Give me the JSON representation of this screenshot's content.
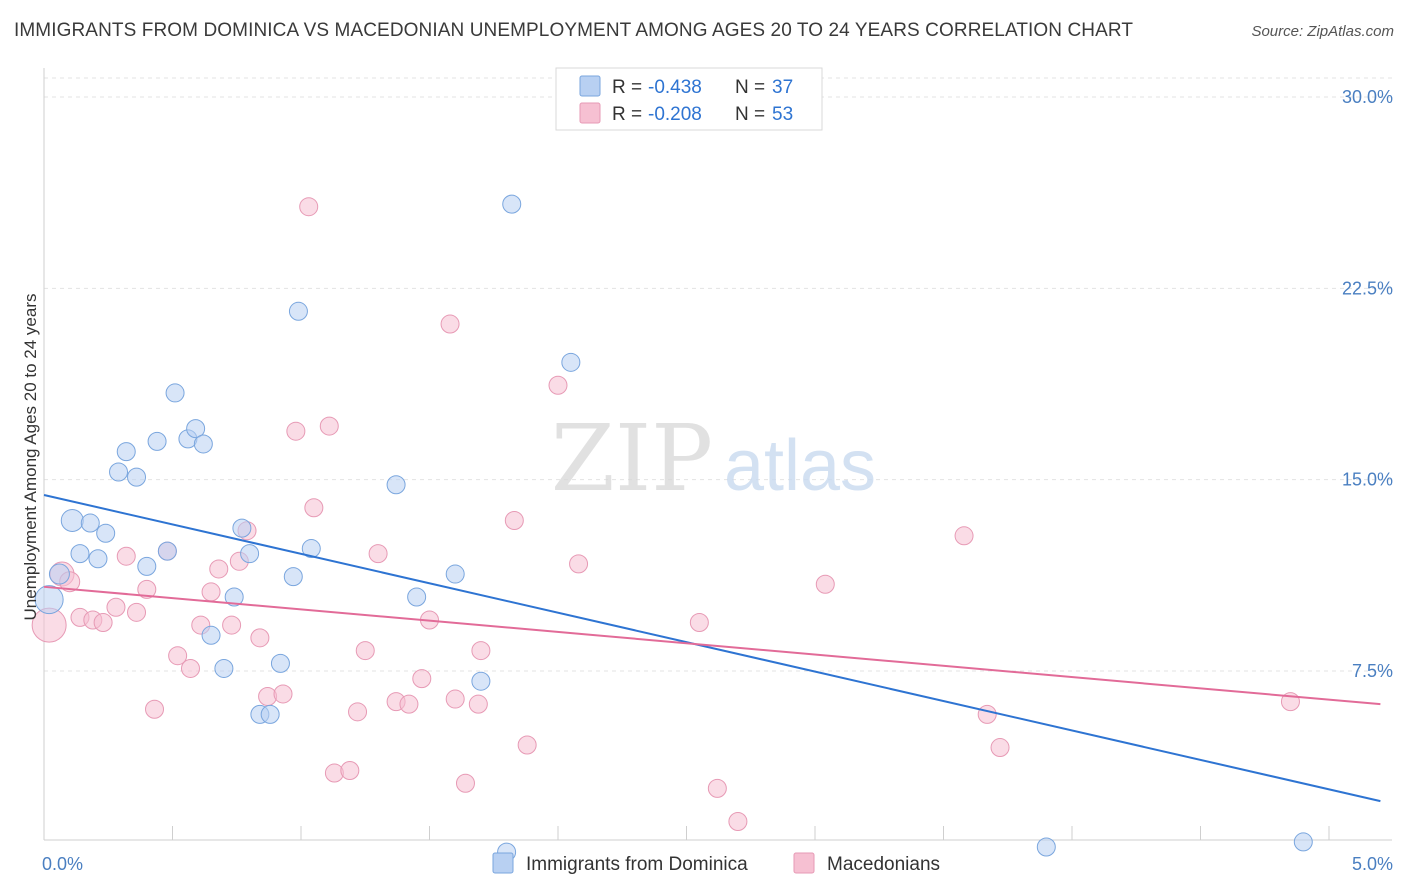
{
  "header": {
    "title": "IMMIGRANTS FROM DOMINICA VS MACEDONIAN UNEMPLOYMENT AMONG AGES 20 TO 24 YEARS CORRELATION CHART",
    "source": "Source: ZipAtlas.com"
  },
  "watermark": {
    "zip": "ZIP",
    "atlas": "atlas"
  },
  "legend": {
    "r_label": "R =",
    "n_label": "N =",
    "rows": [
      {
        "r": "-0.438",
        "n": "37"
      },
      {
        "r": "-0.208",
        "n": "53"
      }
    ]
  },
  "chart_data": {
    "type": "scatter",
    "title": "IMMIGRANTS FROM DOMINICA VS MACEDONIAN UNEMPLOYMENT AMONG AGES 20 TO 24 YEARS CORRELATION CHART",
    "xlabel": "",
    "ylabel": "Unemployment Among Ages 20 to 24 years",
    "xlim": [
      0,
      5.2
    ],
    "ylim": [
      0,
      31.5
    ],
    "x_tick_labels": [
      {
        "value": 0,
        "label": "0.0%"
      },
      {
        "value": 5,
        "label": "5.0%"
      }
    ],
    "y_tick_labels": [
      {
        "value": 7.5,
        "label": "7.5%"
      },
      {
        "value": 15,
        "label": "15.0%"
      },
      {
        "value": 22.5,
        "label": "22.5%"
      },
      {
        "value": 30,
        "label": "30.0%"
      }
    ],
    "grid": "horizontal dashed",
    "legend_placement": "top-center",
    "colors": {
      "dominica_fill": "#b8d0f2",
      "dominica_stroke": "#7aa6de",
      "dominica_line": "#2e74d2",
      "macedonian_fill": "#f6c0d2",
      "macedonian_stroke": "#e79ab5",
      "macedonian_line": "#e26b98"
    },
    "series": [
      {
        "name": "Immigrants from Dominica",
        "r": -0.438,
        "n": 37,
        "trend": {
          "x": [
            0,
            5.2
          ],
          "y": [
            14.4,
            2.4
          ]
        },
        "points": [
          {
            "x": 0.02,
            "y": 10.3,
            "s": 14
          },
          {
            "x": 0.06,
            "y": 11.3,
            "s": 10
          },
          {
            "x": 0.11,
            "y": 13.4,
            "s": 11
          },
          {
            "x": 0.14,
            "y": 12.1,
            "s": 9
          },
          {
            "x": 0.18,
            "y": 13.3,
            "s": 9
          },
          {
            "x": 0.21,
            "y": 11.9,
            "s": 9
          },
          {
            "x": 0.24,
            "y": 12.9,
            "s": 9
          },
          {
            "x": 0.29,
            "y": 15.3,
            "s": 9
          },
          {
            "x": 0.32,
            "y": 16.1,
            "s": 9
          },
          {
            "x": 0.36,
            "y": 15.1,
            "s": 9
          },
          {
            "x": 0.4,
            "y": 11.6,
            "s": 9
          },
          {
            "x": 0.44,
            "y": 16.5,
            "s": 9
          },
          {
            "x": 0.48,
            "y": 12.2,
            "s": 9
          },
          {
            "x": 0.51,
            "y": 18.4,
            "s": 9
          },
          {
            "x": 0.56,
            "y": 16.6,
            "s": 9
          },
          {
            "x": 0.59,
            "y": 17.0,
            "s": 9
          },
          {
            "x": 0.62,
            "y": 16.4,
            "s": 9
          },
          {
            "x": 0.65,
            "y": 8.9,
            "s": 9
          },
          {
            "x": 0.7,
            "y": 7.6,
            "s": 9
          },
          {
            "x": 0.74,
            "y": 10.4,
            "s": 9
          },
          {
            "x": 0.77,
            "y": 13.1,
            "s": 9
          },
          {
            "x": 0.8,
            "y": 12.1,
            "s": 9
          },
          {
            "x": 0.84,
            "y": 5.8,
            "s": 9
          },
          {
            "x": 0.88,
            "y": 5.8,
            "s": 9
          },
          {
            "x": 0.92,
            "y": 7.8,
            "s": 9
          },
          {
            "x": 0.97,
            "y": 11.2,
            "s": 9
          },
          {
            "x": 0.99,
            "y": 21.6,
            "s": 9
          },
          {
            "x": 1.04,
            "y": 12.3,
            "s": 9
          },
          {
            "x": 1.37,
            "y": 14.8,
            "s": 9
          },
          {
            "x": 1.45,
            "y": 10.4,
            "s": 9
          },
          {
            "x": 1.6,
            "y": 11.3,
            "s": 9
          },
          {
            "x": 1.7,
            "y": 7.1,
            "s": 9
          },
          {
            "x": 1.8,
            "y": 0.4,
            "s": 9
          },
          {
            "x": 1.82,
            "y": 25.8,
            "s": 9
          },
          {
            "x": 2.05,
            "y": 19.6,
            "s": 9
          },
          {
            "x": 3.9,
            "y": 0.6,
            "s": 9
          },
          {
            "x": 4.9,
            "y": 0.8,
            "s": 9
          }
        ]
      },
      {
        "name": "Macedonians",
        "r": -0.208,
        "n": 53,
        "trend": {
          "x": [
            0,
            5.2
          ],
          "y": [
            10.8,
            6.2
          ]
        },
        "points": [
          {
            "x": 0.02,
            "y": 9.3,
            "s": 17
          },
          {
            "x": 0.07,
            "y": 11.3,
            "s": 12
          },
          {
            "x": 0.1,
            "y": 11.0,
            "s": 10
          },
          {
            "x": 0.14,
            "y": 9.6,
            "s": 9
          },
          {
            "x": 0.19,
            "y": 9.5,
            "s": 9
          },
          {
            "x": 0.23,
            "y": 9.4,
            "s": 9
          },
          {
            "x": 0.28,
            "y": 10.0,
            "s": 9
          },
          {
            "x": 0.32,
            "y": 12.0,
            "s": 9
          },
          {
            "x": 0.36,
            "y": 9.8,
            "s": 9
          },
          {
            "x": 0.4,
            "y": 10.7,
            "s": 9
          },
          {
            "x": 0.43,
            "y": 6.0,
            "s": 9
          },
          {
            "x": 0.48,
            "y": 12.2,
            "s": 9
          },
          {
            "x": 0.52,
            "y": 8.1,
            "s": 9
          },
          {
            "x": 0.57,
            "y": 7.6,
            "s": 9
          },
          {
            "x": 0.61,
            "y": 9.3,
            "s": 9
          },
          {
            "x": 0.65,
            "y": 10.6,
            "s": 9
          },
          {
            "x": 0.68,
            "y": 11.5,
            "s": 9
          },
          {
            "x": 0.73,
            "y": 9.3,
            "s": 9
          },
          {
            "x": 0.76,
            "y": 11.8,
            "s": 9
          },
          {
            "x": 0.79,
            "y": 13.0,
            "s": 9
          },
          {
            "x": 0.84,
            "y": 8.8,
            "s": 9
          },
          {
            "x": 0.87,
            "y": 6.5,
            "s": 9
          },
          {
            "x": 0.93,
            "y": 6.6,
            "s": 9
          },
          {
            "x": 0.98,
            "y": 16.9,
            "s": 9
          },
          {
            "x": 1.03,
            "y": 25.7,
            "s": 9
          },
          {
            "x": 1.05,
            "y": 13.9,
            "s": 9
          },
          {
            "x": 1.11,
            "y": 17.1,
            "s": 9
          },
          {
            "x": 1.13,
            "y": 3.5,
            "s": 9
          },
          {
            "x": 1.19,
            "y": 3.6,
            "s": 9
          },
          {
            "x": 1.22,
            "y": 5.9,
            "s": 9
          },
          {
            "x": 1.25,
            "y": 8.3,
            "s": 9
          },
          {
            "x": 1.3,
            "y": 12.1,
            "s": 9
          },
          {
            "x": 1.37,
            "y": 6.3,
            "s": 9
          },
          {
            "x": 1.42,
            "y": 6.2,
            "s": 9
          },
          {
            "x": 1.47,
            "y": 7.2,
            "s": 9
          },
          {
            "x": 1.5,
            "y": 9.5,
            "s": 9
          },
          {
            "x": 1.58,
            "y": 21.1,
            "s": 9
          },
          {
            "x": 1.6,
            "y": 6.4,
            "s": 9
          },
          {
            "x": 1.64,
            "y": 3.1,
            "s": 9
          },
          {
            "x": 1.69,
            "y": 6.2,
            "s": 9
          },
          {
            "x": 1.7,
            "y": 8.3,
            "s": 9
          },
          {
            "x": 1.83,
            "y": 13.4,
            "s": 9
          },
          {
            "x": 1.88,
            "y": 4.6,
            "s": 9
          },
          {
            "x": 2.0,
            "y": 18.7,
            "s": 9
          },
          {
            "x": 2.08,
            "y": 11.7,
            "s": 9
          },
          {
            "x": 2.55,
            "y": 9.4,
            "s": 9
          },
          {
            "x": 2.62,
            "y": 2.9,
            "s": 9
          },
          {
            "x": 2.7,
            "y": 1.6,
            "s": 9
          },
          {
            "x": 3.04,
            "y": 10.9,
            "s": 9
          },
          {
            "x": 3.58,
            "y": 12.8,
            "s": 9
          },
          {
            "x": 3.67,
            "y": 5.8,
            "s": 9
          },
          {
            "x": 3.72,
            "y": 4.5,
            "s": 9
          },
          {
            "x": 4.85,
            "y": 6.3,
            "s": 9
          }
        ]
      }
    ]
  }
}
